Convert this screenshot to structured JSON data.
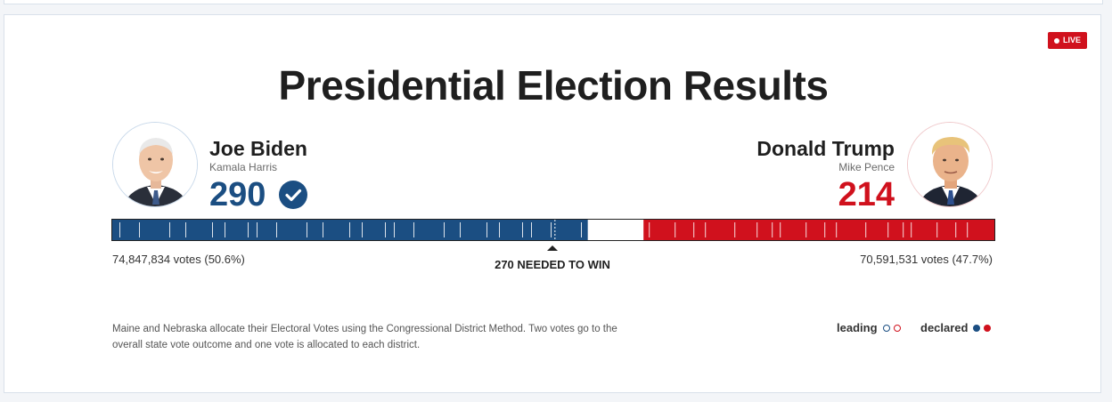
{
  "page": {
    "live_label": "LIVE",
    "title": "Presidential Election Results"
  },
  "candidates": {
    "left": {
      "name": "Joe Biden",
      "running_mate": "Kamala Harris",
      "electoral_votes": "290",
      "winner": true,
      "popular_votes": "74,847,834 votes (50.6%)",
      "color": "#1b4e82",
      "avatar_icon": "candidate-photo"
    },
    "right": {
      "name": "Donald Trump",
      "running_mate": "Mike Pence",
      "electoral_votes": "214",
      "winner": false,
      "popular_votes": "70,591,531 votes (47.7%)",
      "color": "#d0111d",
      "avatar_icon": "candidate-photo"
    }
  },
  "bar": {
    "total_electoral_votes": 538,
    "left_value": 290,
    "right_value": 214,
    "threshold_value": 270,
    "threshold_label": "270 NEEDED TO WIN",
    "colors": {
      "left": "#1b4e82",
      "right": "#d0111d",
      "undecided": "#ffffff"
    }
  },
  "footnote": "Maine and Nebraska allocate their Electoral Votes using the Congressional District Method. Two votes go to the overall state vote outcome and one vote is allocated to each district.",
  "legend": {
    "leading_label": "leading",
    "declared_label": "declared"
  }
}
